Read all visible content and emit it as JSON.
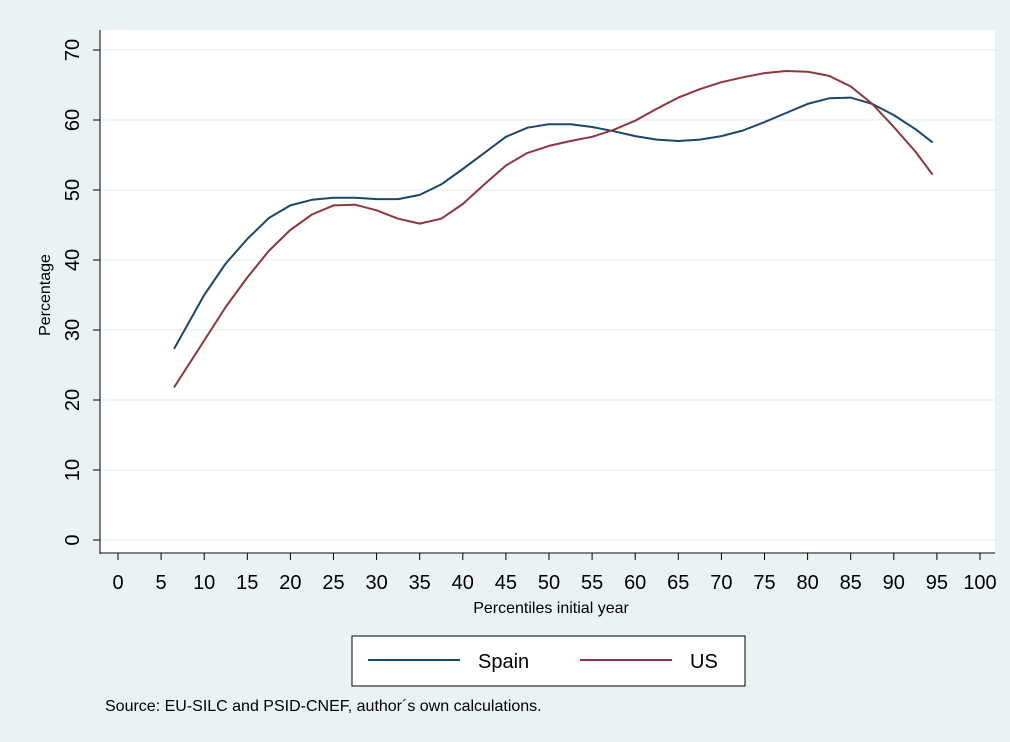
{
  "chart_data": {
    "type": "line",
    "xlabel": "Percentiles initial year",
    "ylabel": "Percentage",
    "note": "Source:  EU-SILC and PSID-CNEF, author´s own calculations.",
    "x": [
      6.5,
      10,
      12.5,
      15,
      17.5,
      20,
      22.5,
      25,
      27.5,
      30,
      32.5,
      35,
      37.5,
      40,
      42.5,
      45,
      47.5,
      50,
      52.5,
      55,
      57.5,
      60,
      62.5,
      65,
      67.5,
      70,
      72.5,
      75,
      77.5,
      80,
      82.5,
      85,
      87.5,
      90,
      92.5,
      94.5
    ],
    "series": [
      {
        "name": "Spain",
        "color": "#1a476f",
        "values": [
          27.3,
          35,
          39.5,
          43,
          46,
          47.8,
          48.6,
          48.9,
          48.9,
          48.7,
          48.7,
          49.3,
          50.8,
          53,
          55.3,
          57.6,
          58.9,
          59.4,
          59.4,
          59,
          58.4,
          57.7,
          57.2,
          57,
          57.2,
          57.7,
          58.5,
          59.7,
          61,
          62.3,
          63.1,
          63.2,
          62.3,
          60.7,
          58.7,
          56.8
        ]
      },
      {
        "name": "US",
        "color": "#90353b",
        "values": [
          21.8,
          28.5,
          33.3,
          37.5,
          41.3,
          44.3,
          46.5,
          47.8,
          47.9,
          47.1,
          45.9,
          45.2,
          45.9,
          48,
          50.8,
          53.5,
          55.3,
          56.3,
          57,
          57.6,
          58.6,
          59.9,
          61.6,
          63.2,
          64.4,
          65.4,
          66.1,
          66.7,
          67,
          66.9,
          66.3,
          64.8,
          62.3,
          59,
          55.5,
          52.2
        ]
      }
    ],
    "xlim": [
      0,
      100
    ],
    "xticks": [
      0,
      5,
      10,
      15,
      20,
      25,
      30,
      35,
      40,
      45,
      50,
      55,
      60,
      65,
      70,
      75,
      80,
      85,
      90,
      95,
      100
    ],
    "ylim": [
      0,
      70
    ],
    "yticks": [
      0,
      10,
      20,
      30,
      40,
      50,
      60,
      70
    ],
    "grid": true
  }
}
